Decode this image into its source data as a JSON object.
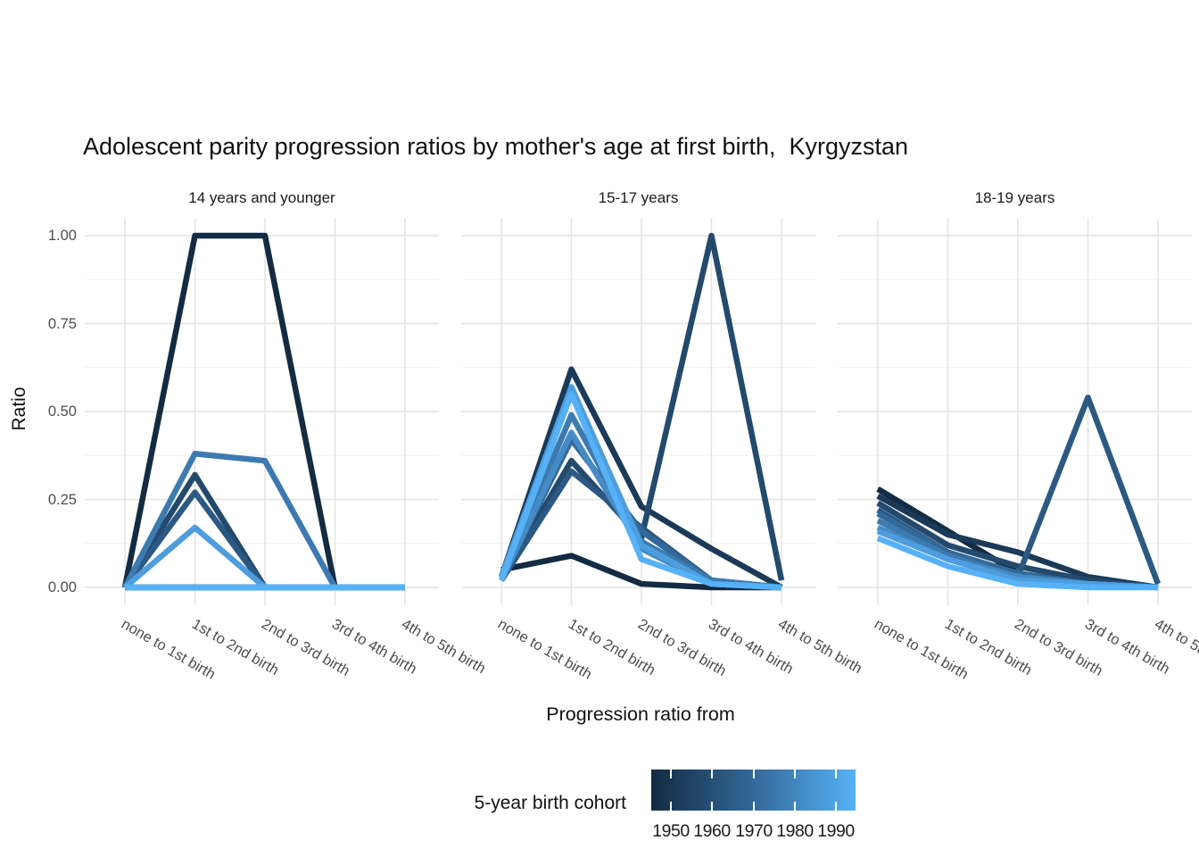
{
  "title": "Adolescent parity progression ratios by mother's age at first birth,  Kyrgyzstan",
  "chart_data": {
    "type": "line",
    "title": "Adolescent parity progression ratios by mother's age at first birth,  Kyrgyzstan",
    "xlabel": "Progression ratio from",
    "ylabel": "Ratio",
    "grid": true,
    "ylim": [
      0,
      1
    ],
    "yticks": [
      {
        "value": 0.0,
        "label": "0.00"
      },
      {
        "value": 0.25,
        "label": "0.25"
      },
      {
        "value": 0.5,
        "label": "0.50"
      },
      {
        "value": 0.75,
        "label": "0.75"
      },
      {
        "value": 1.0,
        "label": "1.00"
      }
    ],
    "categories": [
      "none to 1st birth",
      "1st to 2nd birth",
      "2nd to 3rd birth",
      "3rd to 4th birth",
      "4th to 5th birth"
    ],
    "legend": {
      "title": "5-year birth cohort",
      "position": "bottom",
      "style": "colorbar",
      "low_color": "#132B43",
      "mid_color": "#336998",
      "high_color": "#56B1F7",
      "tick_labels": [
        "1950",
        "1960",
        "1970",
        "1980",
        "1990"
      ]
    },
    "facets": [
      {
        "label": "14 years and younger",
        "series": [
          {
            "cohort": "1950",
            "color": "#132B43",
            "values": [
              0,
              1.0,
              1.0,
              0,
              0
            ]
          },
          {
            "cohort": "1955",
            "color": "#1B3A58",
            "values": [
              0,
              0,
              0,
              0,
              0
            ]
          },
          {
            "cohort": "1960",
            "color": "#23496D",
            "values": [
              0,
              0.32,
              0,
              0,
              0
            ]
          },
          {
            "cohort": "1965",
            "color": "#2B5983",
            "values": [
              0,
              0.27,
              0,
              0,
              0
            ]
          },
          {
            "cohort": "1970",
            "color": "#336998",
            "values": [
              0,
              0,
              0,
              0,
              0
            ]
          },
          {
            "cohort": "1975",
            "color": "#3C7AAF",
            "values": [
              0,
              0.38,
              0.36,
              0,
              0
            ]
          },
          {
            "cohort": "1980",
            "color": "#458BC6",
            "values": [
              0,
              0,
              0,
              0,
              0
            ]
          },
          {
            "cohort": "1985",
            "color": "#4E9DDE",
            "values": [
              0,
              0.17,
              0,
              0,
              0
            ]
          },
          {
            "cohort": "1990",
            "color": "#56B1F7",
            "values": [
              0,
              0,
              0,
              0,
              0
            ]
          }
        ]
      },
      {
        "label": "15-17 years",
        "series": [
          {
            "cohort": "1950",
            "color": "#132B43",
            "values": [
              0.05,
              0.09,
              0.01,
              0,
              0
            ]
          },
          {
            "cohort": "1955",
            "color": "#1B3A58",
            "values": [
              0.03,
              0.62,
              0.23,
              0.11,
              0
            ]
          },
          {
            "cohort": "1960",
            "color": "#23496D",
            "values": [
              0.02,
              0.36,
              0.14,
              1.0,
              0.02
            ]
          },
          {
            "cohort": "1965",
            "color": "#2B5983",
            "values": [
              0.02,
              0.33,
              0.17,
              0.02,
              0
            ]
          },
          {
            "cohort": "1970",
            "color": "#336998",
            "values": [
              0.02,
              0.42,
              0.16,
              0.02,
              0
            ]
          },
          {
            "cohort": "1975",
            "color": "#3C7AAF",
            "values": [
              0.02,
              0.49,
              0.13,
              0.02,
              0
            ]
          },
          {
            "cohort": "1980",
            "color": "#458BC6",
            "values": [
              0.02,
              0.44,
              0.11,
              0.01,
              0
            ]
          },
          {
            "cohort": "1985",
            "color": "#4E9DDE",
            "values": [
              0.03,
              0.57,
              0.12,
              0.01,
              0
            ]
          },
          {
            "cohort": "1990",
            "color": "#56B1F7",
            "values": [
              0.02,
              0.55,
              0.08,
              0.01,
              0
            ]
          }
        ]
      },
      {
        "label": "18-19 years",
        "series": [
          {
            "cohort": "1950",
            "color": "#132B43",
            "values": [
              0.28,
              0.16,
              0.04,
              0.01,
              0
            ]
          },
          {
            "cohort": "1955",
            "color": "#1B3A58",
            "values": [
              0.26,
              0.15,
              0.1,
              0.03,
              0
            ]
          },
          {
            "cohort": "1960",
            "color": "#23496D",
            "values": [
              0.24,
              0.12,
              0.06,
              0.02,
              0
            ]
          },
          {
            "cohort": "1965",
            "color": "#2B5983",
            "values": [
              0.22,
              0.1,
              0.03,
              0.54,
              0.01
            ]
          },
          {
            "cohort": "1970",
            "color": "#336998",
            "values": [
              0.21,
              0.1,
              0.04,
              0.01,
              0
            ]
          },
          {
            "cohort": "1975",
            "color": "#3C7AAF",
            "values": [
              0.19,
              0.09,
              0.03,
              0.01,
              0
            ]
          },
          {
            "cohort": "1980",
            "color": "#458BC6",
            "values": [
              0.17,
              0.08,
              0.03,
              0.01,
              0
            ]
          },
          {
            "cohort": "1985",
            "color": "#4E9DDE",
            "values": [
              0.16,
              0.08,
              0.02,
              0.01,
              0
            ]
          },
          {
            "cohort": "1990",
            "color": "#56B1F7",
            "values": [
              0.14,
              0.06,
              0.01,
              0,
              0
            ]
          }
        ]
      }
    ]
  }
}
